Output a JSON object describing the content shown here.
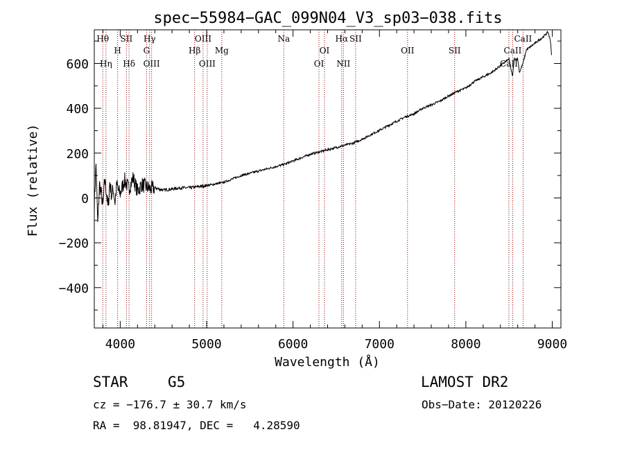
{
  "chart_data": {
    "type": "line",
    "title": "spec−55984−GAC_099N04_V3_sp03−038.fits",
    "xlabel": "Wavelength (Å)",
    "ylabel": "Flux (relative)",
    "xlim": [
      3700,
      9100
    ],
    "ylim": [
      -580,
      750
    ],
    "xticks": [
      4000,
      5000,
      6000,
      7000,
      8000,
      9000
    ],
    "yticks": [
      -400,
      -200,
      0,
      200,
      400,
      600
    ],
    "spectrum_color": "#000000",
    "line_marker_color": "#8b0000",
    "x": [
      3700,
      3720,
      3740,
      3760,
      3780,
      3800,
      3820,
      3840,
      3860,
      3880,
      3900,
      3920,
      3940,
      3960,
      3980,
      4000,
      4050,
      4100,
      4150,
      4200,
      4250,
      4300,
      4350,
      4400,
      4500,
      4600,
      4700,
      4800,
      4900,
      5000,
      5100,
      5200,
      5300,
      5400,
      5500,
      5600,
      5700,
      5800,
      5900,
      6000,
      6100,
      6200,
      6300,
      6400,
      6500,
      6600,
      6700,
      6800,
      6900,
      7000,
      7100,
      7200,
      7300,
      7400,
      7500,
      7600,
      7700,
      7800,
      7900,
      8000,
      8100,
      8200,
      8300,
      8400,
      8500,
      8540,
      8560,
      8600,
      8620,
      8660,
      8680,
      8700,
      8800,
      8900,
      8950,
      8980,
      9000
    ],
    "y": [
      -30,
      150,
      -120,
      60,
      20,
      -40,
      80,
      30,
      -50,
      70,
      10,
      40,
      -20,
      60,
      30,
      20,
      80,
      40,
      90,
      30,
      60,
      50,
      40,
      45,
      35,
      40,
      45,
      45,
      50,
      55,
      62,
      70,
      85,
      100,
      110,
      120,
      130,
      140,
      150,
      165,
      180,
      195,
      205,
      215,
      225,
      235,
      245,
      262,
      282,
      302,
      322,
      342,
      362,
      375,
      400,
      415,
      432,
      455,
      475,
      490,
      520,
      540,
      560,
      590,
      620,
      540,
      620,
      620,
      560,
      600,
      630,
      660,
      690,
      720,
      740,
      700,
      600
    ],
    "annotations": [
      {
        "label": "Hθ",
        "wave": 3798,
        "row": 1
      },
      {
        "label": "Hη",
        "wave": 3835,
        "row": 3
      },
      {
        "label": "H",
        "wave": 3970,
        "row": 2
      },
      {
        "label": "SII",
        "wave": 4072,
        "row": 1
      },
      {
        "label": "Hδ",
        "wave": 4102,
        "row": 3
      },
      {
        "label": "Hγ",
        "wave": 4340,
        "row": 1
      },
      {
        "label": "G",
        "wave": 4305,
        "row": 2
      },
      {
        "label": "OIII",
        "wave": 4363,
        "row": 3
      },
      {
        "label": "OIII",
        "wave": 4959,
        "row": 1
      },
      {
        "label": "Hβ",
        "wave": 4861,
        "row": 2
      },
      {
        "label": "OIII",
        "wave": 5007,
        "row": 3
      },
      {
        "label": "Mg",
        "wave": 5175,
        "row": 2
      },
      {
        "label": "Na",
        "wave": 5893,
        "row": 1
      },
      {
        "label": "OI",
        "wave": 6364,
        "row": 2
      },
      {
        "label": "OI",
        "wave": 6300,
        "row": 3
      },
      {
        "label": "Hα",
        "wave": 6563,
        "row": 1
      },
      {
        "label": "SII",
        "wave": 6724,
        "row": 1
      },
      {
        "label": "NII",
        "wave": 6583,
        "row": 3
      },
      {
        "label": "OII",
        "wave": 7325,
        "row": 2
      },
      {
        "label": "SII",
        "wave": 7870,
        "row": 2
      },
      {
        "label": "CaII",
        "wave": 8662,
        "row": 1
      },
      {
        "label": "CaII",
        "wave": 8542,
        "row": 2
      },
      {
        "label": "CaII",
        "wave": 8498,
        "row": 3
      }
    ]
  },
  "info": {
    "class_label": "STAR",
    "subclass_label": "G5",
    "survey": "LAMOST DR2",
    "redshift": "cz = −176.7 ± 30.7 km/s",
    "obs_date": "Obs−Date: 20120226",
    "coords": "RA =  98.81947, DEC =   4.28590"
  }
}
